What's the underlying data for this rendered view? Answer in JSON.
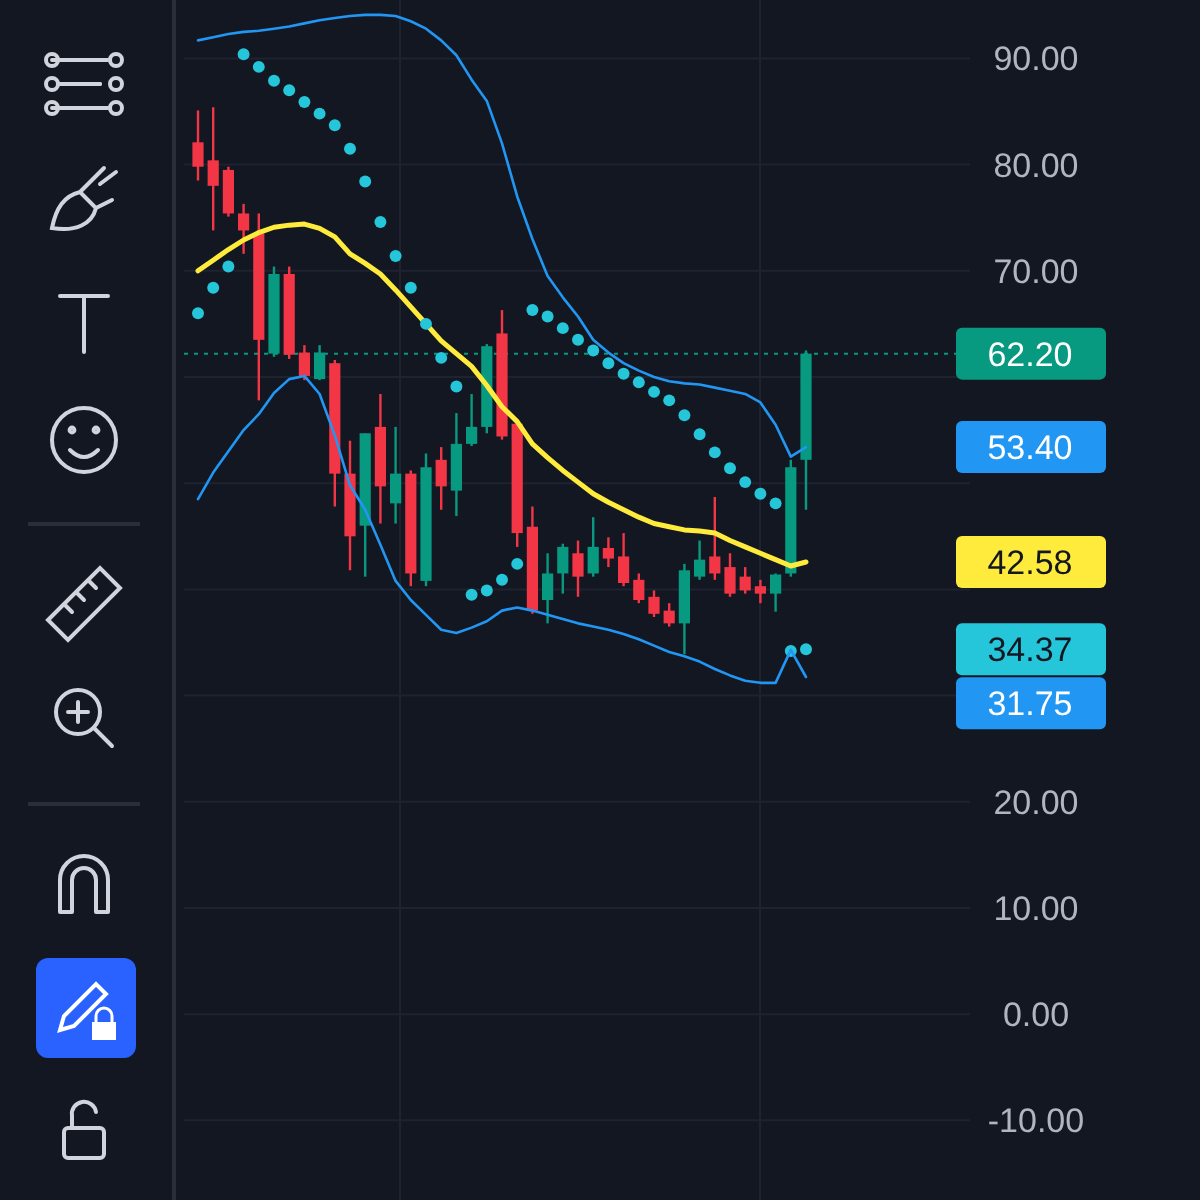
{
  "chart_data": {
    "type": "candlestick",
    "categories": [
      null,
      null,
      null,
      null,
      null,
      null,
      null,
      null,
      null,
      null,
      null,
      null,
      null,
      null,
      null,
      null,
      null,
      null,
      null,
      null,
      null,
      null,
      null,
      null,
      null,
      null,
      null,
      null,
      null,
      null,
      null,
      null,
      null,
      null,
      null,
      null,
      null,
      null,
      null,
      null,
      null
    ],
    "ohlc": [
      [
        82.1,
        85.1,
        78.5,
        79.8
      ],
      [
        80.4,
        85.4,
        73.8,
        78.0
      ],
      [
        79.5,
        79.8,
        75.1,
        75.4
      ],
      [
        75.4,
        76.3,
        71.6,
        73.8
      ],
      [
        73.5,
        75.4,
        57.8,
        63.5
      ],
      [
        62.2,
        70.4,
        61.9,
        69.7
      ],
      [
        69.7,
        70.4,
        61.7,
        62.1
      ],
      [
        62.3,
        63.0,
        59.7,
        60.1
      ],
      [
        59.8,
        63.0,
        59.7,
        62.3
      ],
      [
        61.3,
        61.6,
        47.8,
        50.9
      ],
      [
        50.9,
        54.0,
        41.8,
        45.0
      ],
      [
        46.0,
        54.7,
        41.2,
        54.7
      ],
      [
        55.3,
        58.4,
        46.2,
        49.7
      ],
      [
        48.1,
        55.3,
        46.2,
        50.9
      ],
      [
        50.9,
        51.2,
        40.3,
        41.5
      ],
      [
        40.8,
        52.8,
        40.3,
        51.5
      ],
      [
        52.2,
        53.4,
        47.5,
        49.7
      ],
      [
        49.3,
        56.6,
        46.9,
        53.7
      ],
      [
        53.7,
        58.4,
        53.5,
        55.3
      ],
      [
        55.3,
        63.1,
        54.7,
        62.9
      ],
      [
        64.1,
        66.3,
        54.1,
        54.4
      ],
      [
        55.6,
        56.0,
        44.0,
        45.3
      ],
      [
        45.9,
        47.8,
        37.7,
        38.0
      ],
      [
        39.0,
        43.4,
        36.8,
        41.5
      ],
      [
        41.5,
        44.3,
        39.6,
        44.0
      ],
      [
        43.4,
        44.6,
        39.3,
        41.2
      ],
      [
        41.5,
        46.8,
        41.2,
        44.0
      ],
      [
        43.9,
        44.9,
        42.1,
        42.9
      ],
      [
        43.1,
        45.3,
        40.3,
        40.6
      ],
      [
        40.9,
        41.5,
        38.7,
        39.0
      ],
      [
        39.3,
        39.9,
        37.4,
        37.7
      ],
      [
        38.0,
        38.7,
        36.5,
        36.8
      ],
      [
        36.8,
        42.4,
        33.9,
        41.8
      ],
      [
        41.2,
        44.6,
        40.9,
        42.8
      ],
      [
        43.1,
        48.7,
        40.9,
        41.5
      ],
      [
        42.1,
        43.4,
        39.3,
        39.6
      ],
      [
        41.2,
        42.1,
        39.6,
        39.9
      ],
      [
        40.3,
        40.9,
        38.7,
        39.6
      ],
      [
        39.6,
        41.5,
        37.9,
        41.4
      ],
      [
        41.5,
        52.2,
        41.2,
        51.5
      ],
      [
        52.2,
        62.5,
        47.5,
        62.2
      ]
    ],
    "colors": [
      "#f23645",
      "#f23645",
      "#f23645",
      "#f23645",
      "#f23645",
      "#089981",
      "#f23645",
      "#f23645",
      "#089981",
      "#f23645",
      "#f23645",
      "#089981",
      "#f23645",
      "#089981",
      "#f23645",
      "#089981",
      "#f23645",
      "#089981",
      "#089981",
      "#089981",
      "#f23645",
      "#f23645",
      "#f23645",
      "#089981",
      "#089981",
      "#f23645",
      "#089981",
      "#f23645",
      "#f23645",
      "#f23645",
      "#f23645",
      "#f23645",
      "#089981",
      "#089981",
      "#f23645",
      "#f23645",
      "#f23645",
      "#f23645",
      "#089981",
      "#089981",
      "#089981"
    ],
    "series": [
      {
        "type": "line",
        "color": "#2196f3",
        "marker": "none",
        "values": [
          91.7,
          92.0,
          92.3,
          92.5,
          92.6,
          92.8,
          93.0,
          93.3,
          93.6,
          93.8,
          94.0,
          94.1,
          94.1,
          94.0,
          93.5,
          92.8,
          91.7,
          90.3,
          88.0,
          86.0,
          82.0,
          77.0,
          73.0,
          69.5,
          67.5,
          65.7,
          63.5,
          62.3,
          61.3,
          60.6,
          60.0,
          59.6,
          59.4,
          59.3,
          59.0,
          58.7,
          58.4,
          57.6,
          55.5,
          52.5,
          53.4
        ]
      },
      {
        "type": "line",
        "color": "#ffeb3b",
        "marker": "none",
        "values": [
          70.0,
          71.0,
          72.0,
          72.9,
          73.6,
          74.1,
          74.3,
          74.4,
          74.0,
          73.2,
          71.6,
          70.7,
          69.7,
          68.2,
          66.6,
          65.0,
          63.4,
          62.2,
          61.0,
          59.2,
          57.2,
          55.8,
          53.7,
          52.4,
          51.2,
          50.1,
          49.0,
          48.2,
          47.5,
          46.8,
          46.2,
          45.9,
          45.6,
          45.5,
          45.3,
          44.6,
          44.0,
          43.4,
          42.8,
          42.2,
          42.58
        ]
      },
      {
        "type": "scatter",
        "color": "#26c6da",
        "marker": "circle",
        "values": [
          66.0,
          68.4,
          70.4,
          90.4,
          89.2,
          87.9,
          87.0,
          85.9,
          84.8,
          83.7,
          81.5,
          78.4,
          74.6,
          71.4,
          68.4,
          65.0,
          61.8,
          59.1,
          39.5,
          39.9,
          40.9,
          42.4,
          66.3,
          65.7,
          64.6,
          63.5,
          62.5,
          61.3,
          60.3,
          59.5,
          58.6,
          57.8,
          56.4,
          54.6,
          52.9,
          51.4,
          50.1,
          49.0,
          48.1,
          34.2,
          34.37
        ]
      },
      {
        "type": "line",
        "color": "#2196f3",
        "marker": "none",
        "values": [
          48.5,
          51.0,
          53.0,
          55.0,
          56.5,
          58.5,
          59.8,
          60.1,
          58.4,
          54.5,
          49.8,
          47.5,
          44.2,
          40.8,
          39.0,
          37.6,
          36.2,
          35.9,
          36.4,
          37.0,
          38.0,
          38.3,
          38.0,
          37.6,
          37.2,
          36.8,
          36.5,
          36.2,
          35.8,
          35.3,
          34.7,
          34.1,
          33.7,
          33.2,
          32.5,
          31.9,
          31.4,
          31.2,
          31.2,
          34.3,
          31.75
        ]
      }
    ],
    "ylim": [
      -17.5,
      95.5
    ],
    "yticks": [
      {
        "value": 90,
        "label": "90.00"
      },
      {
        "value": 80,
        "label": "80.00"
      },
      {
        "value": 70,
        "label": "70.00"
      },
      {
        "value": 60,
        "label": null
      },
      {
        "value": 50,
        "label": null
      },
      {
        "value": 40,
        "label": null
      },
      {
        "value": 30,
        "label": null
      },
      {
        "value": 20,
        "label": "20.00"
      },
      {
        "value": 10,
        "label": "10.00"
      },
      {
        "value": 0,
        "label": "0.00"
      },
      {
        "value": -10,
        "label": "-10.00"
      }
    ],
    "grid": "y",
    "annotations": [
      "53.40",
      "42.58",
      "34.37",
      "31.75"
    ],
    "ref_lines": [
      {
        "axis": "y",
        "value": 62.2,
        "label": "62.20",
        "color": "#089981",
        "line_style": "dotted"
      }
    ]
  }
}
